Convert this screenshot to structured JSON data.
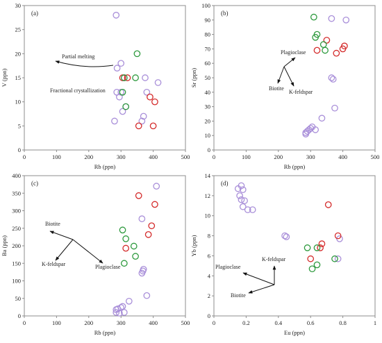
{
  "colors": {
    "purple": "#a98fd9",
    "red": "#d42b2b",
    "green": "#2e9a3e",
    "axis": "#8c8c8c",
    "text": "#222222"
  },
  "chart_data": [
    {
      "type": "scatter",
      "panel_label": "(a)",
      "xlabel": "Rb (ppn)",
      "ylabel": "V (ppn)",
      "xlim": [
        0,
        500
      ],
      "ylim": [
        0,
        30
      ],
      "xticks": [
        0,
        100,
        200,
        300,
        400,
        500
      ],
      "yticks": [
        0,
        5,
        10,
        15,
        20,
        25,
        30
      ],
      "series": [
        {
          "color": "purple",
          "points": [
            [
              285,
              28
            ],
            [
              300,
              18
            ],
            [
              288,
              17
            ],
            [
              287,
              12
            ],
            [
              300,
              12
            ],
            [
              295,
              11
            ],
            [
              305,
              8
            ],
            [
              315,
              9
            ],
            [
              310,
              15
            ],
            [
              375,
              15
            ],
            [
              380,
              12
            ],
            [
              365,
              6
            ],
            [
              370,
              7
            ],
            [
              415,
              14
            ],
            [
              280,
              6
            ]
          ]
        },
        {
          "color": "red",
          "points": [
            [
              305,
              15
            ],
            [
              320,
              15
            ],
            [
              390,
              11
            ],
            [
              405,
              10
            ],
            [
              355,
              5
            ],
            [
              400,
              5
            ]
          ]
        },
        {
          "color": "green",
          "points": [
            [
              350,
              20
            ],
            [
              310,
              15
            ],
            [
              345,
              15
            ],
            [
              305,
              12
            ],
            [
              315,
              9
            ]
          ]
        }
      ],
      "annotations": [
        {
          "text": "Partial melting"
        },
        {
          "text": "Fractional crystallization"
        }
      ]
    },
    {
      "type": "scatter",
      "panel_label": "(b)",
      "xlabel": "Rb (ppn)",
      "ylabel": "Sr (ppn)",
      "xlim": [
        0,
        500
      ],
      "ylim": [
        0,
        100
      ],
      "xticks": [
        0,
        100,
        200,
        300,
        400,
        500
      ],
      "yticks": [
        0,
        10,
        20,
        30,
        40,
        50,
        60,
        70,
        80,
        90,
        100
      ],
      "series": [
        {
          "color": "purple",
          "points": [
            [
              365,
              91
            ],
            [
              410,
              90
            ],
            [
              365,
              50
            ],
            [
              370,
              49
            ],
            [
              335,
              22
            ],
            [
              375,
              29
            ],
            [
              305,
              16
            ],
            [
              300,
              15
            ],
            [
              295,
              14
            ],
            [
              290,
              13
            ],
            [
              285,
              12
            ],
            [
              285,
              11
            ],
            [
              315,
              14
            ]
          ]
        },
        {
          "color": "red",
          "points": [
            [
              320,
              69
            ],
            [
              350,
              76
            ],
            [
              380,
              67
            ],
            [
              400,
              70
            ],
            [
              405,
              72
            ]
          ]
        },
        {
          "color": "green",
          "points": [
            [
              310,
              92
            ],
            [
              320,
              80
            ],
            [
              315,
              78
            ],
            [
              340,
              73
            ],
            [
              345,
              69
            ]
          ]
        }
      ],
      "annotations": [
        {
          "text": "Plagioclase"
        },
        {
          "text": "Biotite"
        },
        {
          "text": "K-feldspar"
        }
      ]
    },
    {
      "type": "scatter",
      "panel_label": "(c)",
      "xlabel": "Rb (ppn)",
      "ylabel": "Ba (ppn)",
      "xlim": [
        0,
        500
      ],
      "ylim": [
        0,
        400
      ],
      "xticks": [
        0,
        100,
        200,
        300,
        400,
        500
      ],
      "yticks": [
        0,
        50,
        100,
        150,
        200,
        250,
        300,
        350,
        400
      ],
      "series": [
        {
          "color": "purple",
          "points": [
            [
              410,
              370
            ],
            [
              365,
              277
            ],
            [
              370,
              133
            ],
            [
              368,
              128
            ],
            [
              365,
              122
            ],
            [
              380,
              58
            ],
            [
              325,
              42
            ],
            [
              305,
              27
            ],
            [
              300,
              24
            ],
            [
              290,
              20
            ],
            [
              285,
              18
            ],
            [
              285,
              10
            ],
            [
              295,
              8
            ],
            [
              310,
              10
            ]
          ]
        },
        {
          "color": "red",
          "points": [
            [
              355,
              343
            ],
            [
              405,
              318
            ],
            [
              395,
              257
            ],
            [
              315,
              193
            ],
            [
              385,
              232
            ]
          ]
        },
        {
          "color": "green",
          "points": [
            [
              305,
              245
            ],
            [
              315,
              220
            ],
            [
              340,
              199
            ],
            [
              345,
              170
            ],
            [
              310,
              150
            ]
          ]
        }
      ],
      "annotations": [
        {
          "text": "Biotite"
        },
        {
          "text": "K-feldspar"
        },
        {
          "text": "Plagioclase"
        }
      ]
    },
    {
      "type": "scatter",
      "panel_label": "(d)",
      "xlabel": "Eu (ppn)",
      "ylabel": "Yb (ppn)",
      "xlim": [
        0,
        1.0
      ],
      "ylim": [
        0,
        14
      ],
      "xticks": [
        0,
        0.2,
        0.4,
        0.6,
        0.8,
        1
      ],
      "yticks": [
        0,
        2,
        4,
        6,
        8,
        10,
        12,
        14
      ],
      "series": [
        {
          "color": "purple",
          "points": [
            [
              0.17,
              13.0
            ],
            [
              0.15,
              12.7
            ],
            [
              0.18,
              12.6
            ],
            [
              0.16,
              12.0
            ],
            [
              0.17,
              11.6
            ],
            [
              0.19,
              11.5
            ],
            [
              0.18,
              10.9
            ],
            [
              0.21,
              10.6
            ],
            [
              0.24,
              10.6
            ],
            [
              0.44,
              8.0
            ],
            [
              0.45,
              7.9
            ],
            [
              0.78,
              7.7
            ],
            [
              0.77,
              5.7
            ]
          ]
        },
        {
          "color": "red",
          "points": [
            [
              0.71,
              11.1
            ],
            [
              0.77,
              8.0
            ],
            [
              0.67,
              7.2
            ],
            [
              0.66,
              6.8
            ],
            [
              0.6,
              5.7
            ]
          ]
        },
        {
          "color": "green",
          "points": [
            [
              0.58,
              6.8
            ],
            [
              0.64,
              6.8
            ],
            [
              0.75,
              5.7
            ],
            [
              0.64,
              5.1
            ],
            [
              0.61,
              4.7
            ]
          ]
        }
      ],
      "annotations": [
        {
          "text": "K-feldspar"
        },
        {
          "text": "Plagioclase"
        },
        {
          "text": "Biotite"
        }
      ]
    }
  ]
}
